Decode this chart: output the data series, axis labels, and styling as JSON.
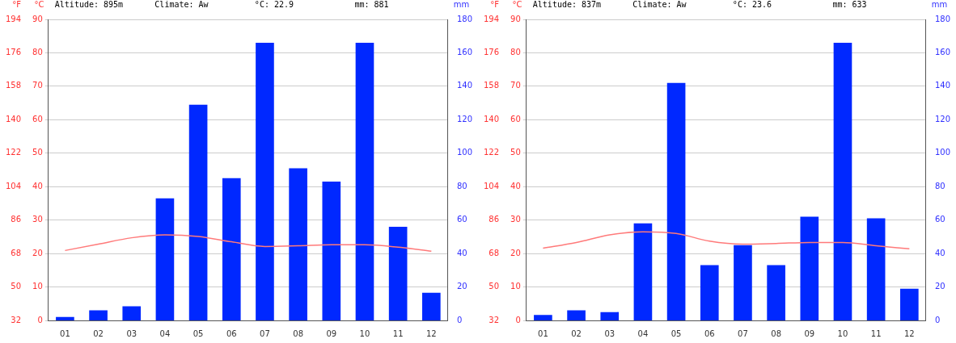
{
  "chart_data": [
    {
      "type": "bar",
      "annotations": [
        "Altitude: 895m",
        "Climate: Aw",
        "°C: 22.9",
        "mm: 881"
      ],
      "categories": [
        "01",
        "02",
        "03",
        "04",
        "05",
        "06",
        "07",
        "08",
        "09",
        "10",
        "11",
        "12"
      ],
      "ylabel": "°C",
      "y2label": "mm",
      "y3label": "°F",
      "series": [
        {
          "axis": "y2",
          "color": "#0028ff",
          "values": [
            2,
            6,
            8.5,
            73,
            129,
            85,
            166,
            91,
            83,
            166,
            56,
            16.5
          ]
        },
        {
          "type": "line",
          "axis": "y",
          "color": "#ff7a7a",
          "values": [
            20.9,
            22.8,
            24.7,
            25.6,
            25.1,
            23.5,
            22.1,
            22.3,
            22.6,
            22.6,
            21.9,
            20.7
          ]
        }
      ],
      "ylim": [
        0,
        90
      ],
      "yticks": [
        0,
        10,
        20,
        30,
        40,
        50,
        60,
        70,
        80,
        90
      ],
      "y2lim": [
        0,
        180
      ],
      "y2ticks": [
        0,
        20,
        40,
        60,
        80,
        100,
        120,
        140,
        160,
        180
      ],
      "y3lim": [
        32,
        194
      ],
      "y3ticks": [
        32,
        50,
        68,
        86,
        104,
        122,
        140,
        158,
        176,
        194
      ],
      "grid": "y",
      "legend": false,
      "marker": "none"
    },
    {
      "type": "bar",
      "annotations": [
        "Altitude: 837m",
        "Climate: Aw",
        "°C: 23.6",
        "mm: 633"
      ],
      "categories": [
        "01",
        "02",
        "03",
        "04",
        "05",
        "06",
        "07",
        "08",
        "09",
        "10",
        "11",
        "12"
      ],
      "ylabel": "°C",
      "y2label": "mm",
      "y3label": "°F",
      "series": [
        {
          "axis": "y2",
          "color": "#0028ff",
          "values": [
            3.3,
            6,
            5,
            58,
            142,
            33,
            45,
            33,
            62,
            166,
            61,
            19
          ]
        },
        {
          "type": "line",
          "axis": "y",
          "color": "#ff7a7a",
          "values": [
            21.6,
            23.3,
            25.6,
            26.5,
            26,
            23.7,
            22.8,
            23,
            23.3,
            23.3,
            22.3,
            21.4
          ]
        }
      ],
      "ylim": [
        0,
        90
      ],
      "yticks": [
        0,
        10,
        20,
        30,
        40,
        50,
        60,
        70,
        80,
        90
      ],
      "y2lim": [
        0,
        180
      ],
      "y2ticks": [
        0,
        20,
        40,
        60,
        80,
        100,
        120,
        140,
        160,
        180
      ],
      "y3lim": [
        32,
        194
      ],
      "y3ticks": [
        32,
        50,
        68,
        86,
        104,
        122,
        140,
        158,
        176,
        194
      ],
      "grid": "y",
      "legend": false,
      "marker": "none"
    }
  ]
}
